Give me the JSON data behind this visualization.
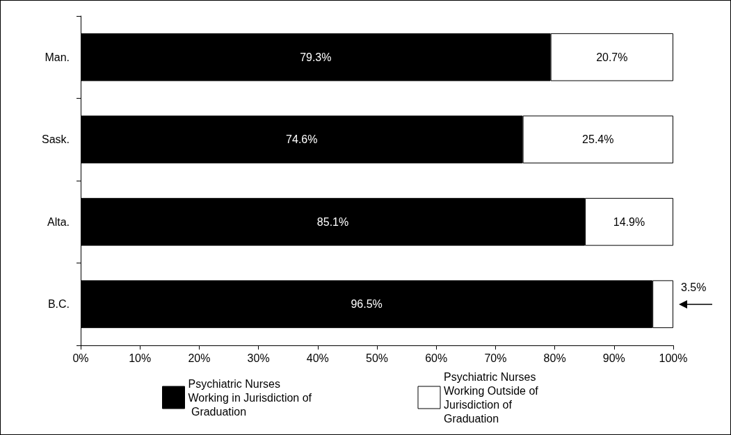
{
  "chart_data": {
    "type": "bar",
    "orientation": "horizontal",
    "stacked": true,
    "categories": [
      "Man.",
      "Sask.",
      "Alta.",
      "B.C."
    ],
    "series": [
      {
        "name": "Psychiatric Nurses Working in Jurisdiction of Graduation",
        "color": "#000000",
        "values": [
          79.3,
          74.6,
          85.1,
          96.5
        ],
        "value_labels": [
          "79.3%",
          "74.6%",
          "85.1%",
          "96.5%"
        ]
      },
      {
        "name": "Psychiatric Nurses Working Outside of Jurisdiction of Graduation",
        "color": "#ffffff",
        "values": [
          20.7,
          25.4,
          14.9,
          3.5
        ],
        "value_labels": [
          "20.7%",
          "25.4%",
          "14.9%",
          "3.5%"
        ]
      }
    ],
    "xlim": [
      0,
      100
    ],
    "xticks": [
      {
        "value": 0,
        "label": "0%"
      },
      {
        "value": 10,
        "label": "10%"
      },
      {
        "value": 20,
        "label": "20%"
      },
      {
        "value": 30,
        "label": "30%"
      },
      {
        "value": 40,
        "label": "40%"
      },
      {
        "value": 50,
        "label": "50%"
      },
      {
        "value": 60,
        "label": "60%"
      },
      {
        "value": 70,
        "label": "70%"
      },
      {
        "value": 80,
        "label": "80%"
      },
      {
        "value": 90,
        "label": "90%"
      },
      {
        "value": 100,
        "label": "100%"
      }
    ],
    "grid": false,
    "legend": "bottom"
  }
}
